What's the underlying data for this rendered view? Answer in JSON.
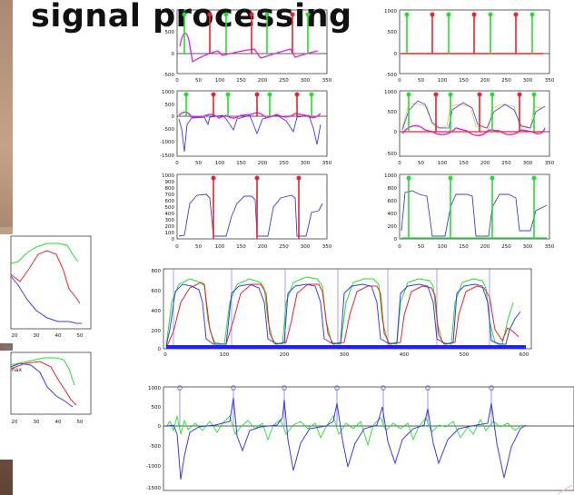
{
  "title": "signal processing",
  "colors": {
    "red": "#e8242a",
    "green": "#22e02a",
    "blue": "#2a2ae6",
    "magenta": "#e020e0"
  },
  "panels": {
    "p1": {
      "yticks": [
        "1000",
        "500",
        "0",
        "-500"
      ],
      "xticks": [
        "0",
        "50",
        "100",
        "150",
        "200",
        "250",
        "300",
        "350"
      ]
    },
    "p2": {
      "yticks": [
        "1000",
        "500",
        "0",
        "-500"
      ],
      "xticks": [
        "0",
        "50",
        "100",
        "150",
        "200",
        "250",
        "300",
        "350"
      ]
    },
    "p3": {
      "yticks": [
        "1000",
        "500",
        "0",
        "-500",
        "-1000",
        "-1500"
      ],
      "xticks": [
        "0",
        "50",
        "100",
        "150",
        "200",
        "250",
        "300",
        "350"
      ]
    },
    "p4": {
      "yticks": [
        "1000",
        "500",
        "0",
        "-500"
      ],
      "xticks": [
        "0",
        "50",
        "100",
        "150",
        "200",
        "250",
        "300",
        "350"
      ]
    },
    "p5": {
      "yticks": [
        "1000",
        "900",
        "800",
        "700",
        "600",
        "500",
        "400",
        "300",
        "200",
        "100",
        "0"
      ],
      "xticks": [
        "0",
        "50",
        "100",
        "150",
        "200",
        "250",
        "300",
        "350"
      ]
    },
    "p6": {
      "yticks": [
        "1000",
        "800",
        "600",
        "400",
        "200",
        "0"
      ],
      "xticks": [
        "0",
        "50",
        "100",
        "150",
        "200",
        "250",
        "300",
        "350"
      ]
    },
    "big1": {
      "yticks": [
        "800",
        "600",
        "400",
        "200",
        "0"
      ],
      "xticks": [
        "0",
        "100",
        "200",
        "300",
        "400",
        "500",
        "600"
      ]
    },
    "big2": {
      "yticks": [
        "1000",
        "500",
        "0",
        "-500",
        "-1000",
        "-1500"
      ],
      "xticks": [
        "0",
        "100",
        "200",
        "300",
        "400",
        "500",
        "600"
      ]
    },
    "small1": {
      "xticks": [
        "20",
        "30",
        "40",
        "50"
      ]
    },
    "small2": {
      "xticks": [
        "20",
        "30",
        "40",
        "50"
      ],
      "annotation": "nax"
    }
  }
}
